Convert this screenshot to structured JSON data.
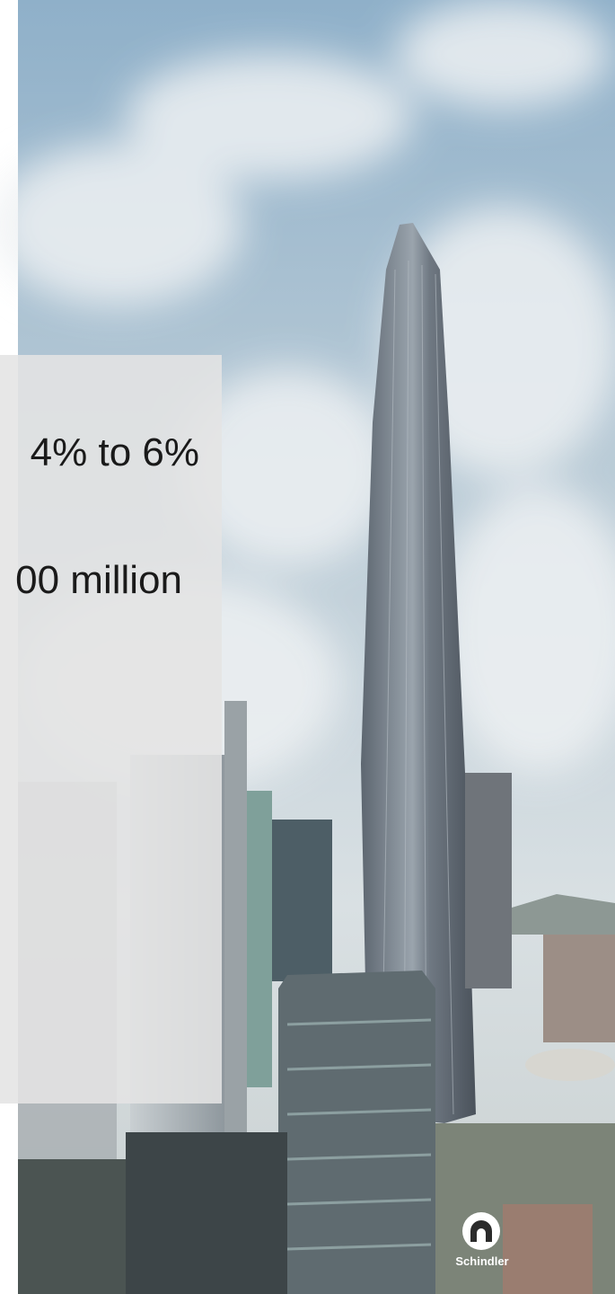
{
  "slide": {
    "lines": [
      "4% to 6%",
      "00 million"
    ],
    "logo": "Schindler"
  }
}
